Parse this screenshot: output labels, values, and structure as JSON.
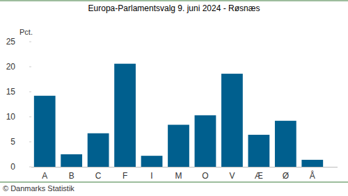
{
  "chart_data": {
    "type": "bar",
    "title": "Europa-Parlamentsvalg 9. juni 2024 - Røsnæs",
    "y_label": "Pct.",
    "source": "© Danmarks Statistik",
    "categories": [
      "A",
      "B",
      "C",
      "F",
      "I",
      "M",
      "O",
      "V",
      "Æ",
      "Ø",
      "Å"
    ],
    "values": [
      14.2,
      2.5,
      6.7,
      20.6,
      2.2,
      8.4,
      10.3,
      18.6,
      6.4,
      9.2,
      1.4
    ],
    "color": "#005f8e",
    "ylim": [
      0,
      25
    ],
    "yticks": [
      0,
      5,
      10,
      15,
      20,
      25
    ],
    "grid": false
  }
}
